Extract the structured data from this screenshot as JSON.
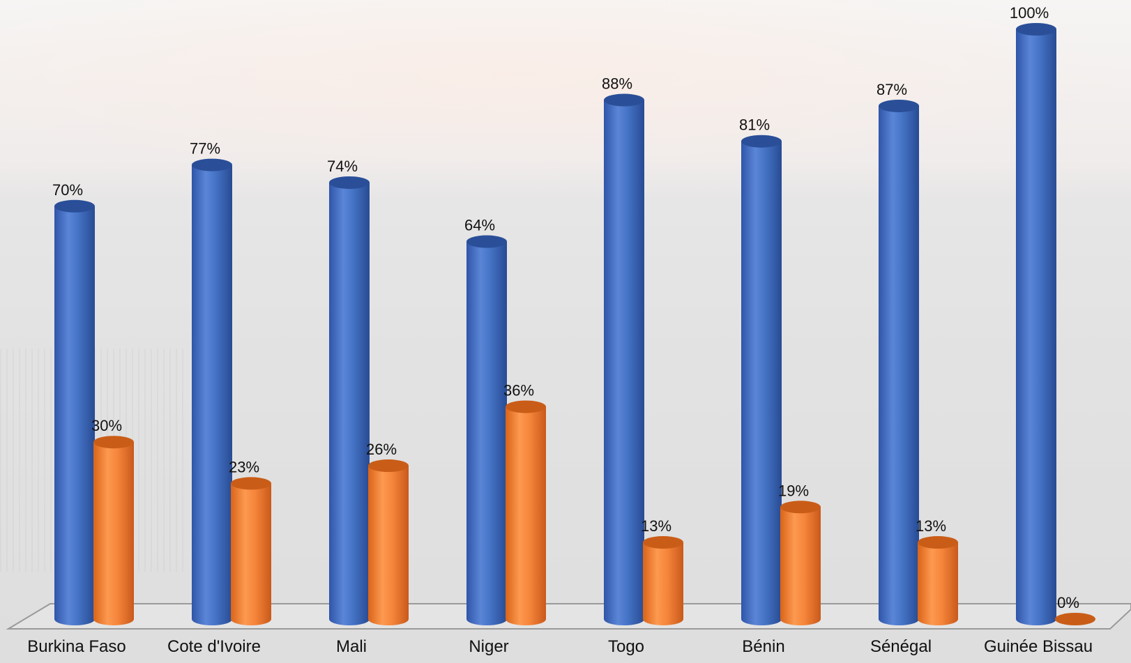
{
  "chart_data": {
    "type": "bar",
    "categories": [
      "Burkina Faso",
      "Cote d'Ivoire",
      "Mali",
      "Niger",
      "Togo",
      "Bénin",
      "Sénégal",
      "Guinée Bissau"
    ],
    "series": [
      {
        "color": "#4472C4",
        "values": [
          70,
          77,
          74,
          64,
          88,
          81,
          87,
          100
        ]
      },
      {
        "color": "#ED7D31",
        "values": [
          30,
          23,
          26,
          36,
          13,
          19,
          13,
          0
        ]
      }
    ],
    "value_labels": [
      [
        "70%",
        "77%",
        "74%",
        "64%",
        "88%",
        "81%",
        "87%",
        "100%"
      ],
      [
        "30%",
        "23%",
        "26%",
        "36%",
        "13%",
        "19%",
        "13%",
        "0%"
      ]
    ],
    "ylim": [
      0,
      100
    ],
    "style": "3d-cylinder",
    "grid": false,
    "legend": "none"
  }
}
